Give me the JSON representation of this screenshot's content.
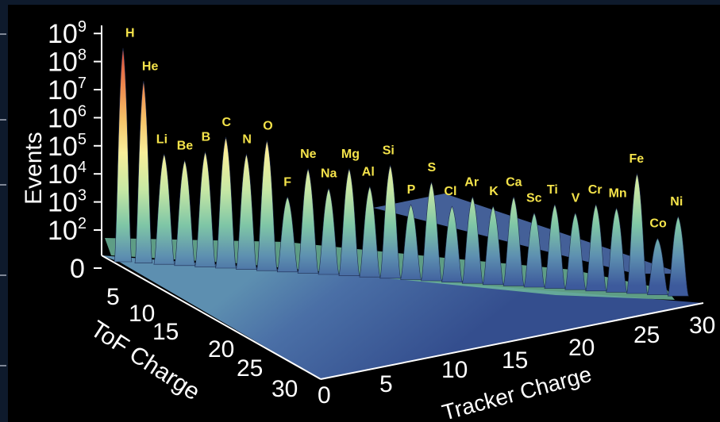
{
  "chart_data": {
    "type": "3d-surface",
    "zlabel": "Events",
    "xlabel": "Tracker Charge",
    "ylabel": "ToF Charge",
    "z_scale": "log",
    "z_ticks": [
      {
        "base": "10",
        "exp": "9",
        "value": 1000000000
      },
      {
        "base": "10",
        "exp": "8",
        "value": 100000000
      },
      {
        "base": "10",
        "exp": "7",
        "value": 10000000
      },
      {
        "base": "10",
        "exp": "6",
        "value": 1000000
      },
      {
        "base": "10",
        "exp": "5",
        "value": 100000
      },
      {
        "base": "10",
        "exp": "4",
        "value": 10000
      },
      {
        "base": "10",
        "exp": "3",
        "value": 1000
      },
      {
        "base": "10",
        "exp": "2",
        "value": 100
      },
      {
        "base": "0",
        "exp": "",
        "value": 0
      }
    ],
    "tracker_ticks": [
      "0",
      "5",
      "10",
      "15",
      "20",
      "25",
      "30"
    ],
    "tof_ticks": [
      "5",
      "10",
      "15",
      "20",
      "25",
      "30"
    ],
    "xlim": [
      0,
      30
    ],
    "ylim": [
      0,
      30
    ],
    "peaks": [
      {
        "label": "H",
        "z": 1,
        "events": 300000000
      },
      {
        "label": "He",
        "z": 2,
        "events": 20000000
      },
      {
        "label": "Li",
        "z": 3,
        "events": 50000
      },
      {
        "label": "Be",
        "z": 4,
        "events": 30000
      },
      {
        "label": "B",
        "z": 5,
        "events": 60000
      },
      {
        "label": "C",
        "z": 6,
        "events": 200000
      },
      {
        "label": "N",
        "z": 7,
        "events": 50000
      },
      {
        "label": "O",
        "z": 8,
        "events": 150000
      },
      {
        "label": "F",
        "z": 9,
        "events": 1500
      },
      {
        "label": "Ne",
        "z": 10,
        "events": 15000
      },
      {
        "label": "Na",
        "z": 11,
        "events": 3000
      },
      {
        "label": "Mg",
        "z": 12,
        "events": 15000
      },
      {
        "label": "Al",
        "z": 13,
        "events": 3500
      },
      {
        "label": "Si",
        "z": 14,
        "events": 20000
      },
      {
        "label": "P",
        "z": 15,
        "events": 800
      },
      {
        "label": "S",
        "z": 16,
        "events": 5000
      },
      {
        "label": "Cl",
        "z": 17,
        "events": 700
      },
      {
        "label": "Ar",
        "z": 18,
        "events": 1500
      },
      {
        "label": "K",
        "z": 19,
        "events": 700
      },
      {
        "label": "Ca",
        "z": 20,
        "events": 1500
      },
      {
        "label": "Sc",
        "z": 21,
        "events": 400
      },
      {
        "label": "Ti",
        "z": 22,
        "events": 800
      },
      {
        "label": "V",
        "z": 23,
        "events": 400
      },
      {
        "label": "Cr",
        "z": 24,
        "events": 800
      },
      {
        "label": "Mn",
        "z": 25,
        "events": 600
      },
      {
        "label": "Fe",
        "z": 26,
        "events": 10000
      },
      {
        "label": "Co",
        "z": 27,
        "events": 50
      },
      {
        "label": "Ni",
        "z": 28,
        "events": 300
      }
    ],
    "colors": {
      "low": "#3d5a9c",
      "mid": "#7fc6a6",
      "high": "#f8ee9a",
      "peak": "#d8463a"
    },
    "grid": false,
    "legend": "none"
  }
}
